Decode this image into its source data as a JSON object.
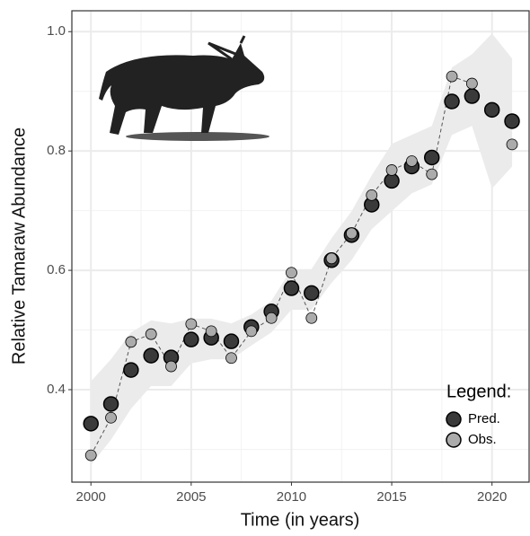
{
  "chart_data": {
    "type": "line",
    "x_label": "Time (in years)",
    "y_label": "Relative Tamaraw Abundance",
    "x": [
      2000,
      2001,
      2002,
      2003,
      2004,
      2005,
      2006,
      2007,
      2008,
      2009,
      2010,
      2011,
      2012,
      2013,
      2014,
      2015,
      2016,
      2017,
      2018,
      2019,
      2020,
      2021
    ],
    "series": [
      {
        "name": "Pred.",
        "color": "#3a3a3a",
        "values": [
          0.343,
          0.376,
          0.433,
          0.457,
          0.454,
          0.484,
          0.487,
          0.481,
          0.505,
          0.531,
          0.57,
          0.562,
          0.617,
          0.659,
          0.71,
          0.75,
          0.774,
          0.789,
          0.883,
          0.892,
          0.869,
          0.85
        ]
      },
      {
        "name": "Obs.",
        "color": "#ababab",
        "values": [
          0.29,
          0.353,
          0.48,
          0.493,
          0.439,
          0.51,
          0.498,
          0.453,
          0.498,
          0.52,
          0.596,
          0.52,
          0.62,
          0.662,
          0.726,
          0.768,
          0.783,
          0.761,
          0.925,
          0.913,
          null,
          0.811
        ]
      }
    ],
    "band": {
      "color": "#ebebeb",
      "upper": [
        0.414,
        0.451,
        0.496,
        0.516,
        0.511,
        0.519,
        0.519,
        0.511,
        0.526,
        0.549,
        0.602,
        0.602,
        0.654,
        0.699,
        0.759,
        0.812,
        0.827,
        0.842,
        0.94,
        0.962,
        0.997,
        0.955
      ],
      "lower": [
        0.274,
        0.316,
        0.368,
        0.406,
        0.406,
        0.444,
        0.451,
        0.451,
        0.474,
        0.496,
        0.534,
        0.534,
        0.579,
        0.617,
        0.669,
        0.699,
        0.729,
        0.744,
        0.827,
        0.842,
        0.737,
        0.774
      ]
    },
    "xlim": [
      1999.05,
      2021.85
    ],
    "ylim": [
      0.245,
      1.035
    ],
    "xticks": [
      2000,
      2005,
      2010,
      2015,
      2020
    ],
    "yticks": [
      0.4,
      0.6,
      0.8,
      {
        "value": 1,
        "label": "1.0"
      }
    ],
    "x_minor_grid": [
      2002.5,
      2007.5,
      2012.5,
      2017.5
    ],
    "y_minor_grid": [
      0.3,
      0.5,
      0.7,
      0.9
    ],
    "grid": true,
    "legend_title": "Legend:",
    "legend_position": "bottom-right"
  }
}
